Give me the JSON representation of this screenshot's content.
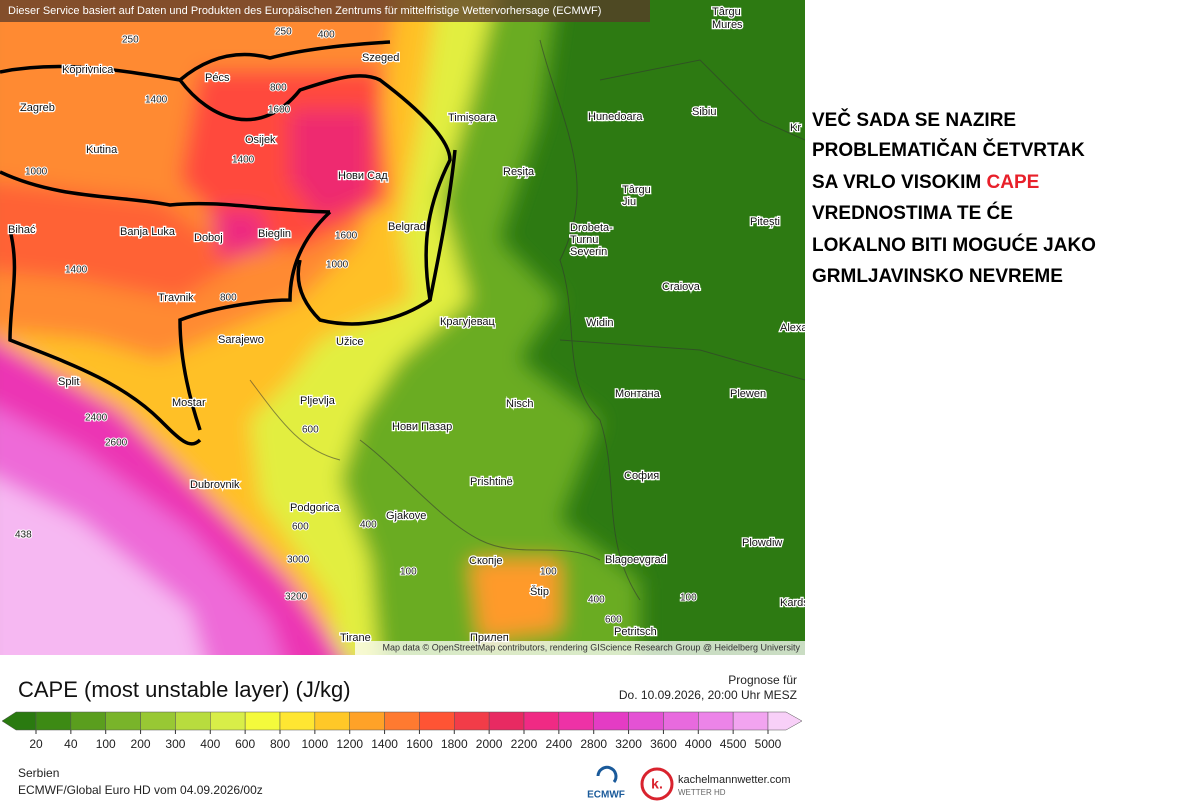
{
  "header": {
    "attribution": "Dieser Service basiert auf Daten und Produkten des Europäischen Zentrums für mittelfristige Wettervorhersage (ECMWF)"
  },
  "map": {
    "city_labels": [
      "Târgu",
      "Mures",
      "Koprivnica",
      "Pécs",
      "Szeged",
      "Zagreb",
      "Osijek",
      "Timișoara",
      "Hunedoara",
      "Sibiu",
      "Kutina",
      "Нови Сад",
      "Reșița",
      "Târgu",
      "Jiu",
      "Pitești",
      "Bihać",
      "Banja Luka",
      "Doboj",
      "Bieglin",
      "Belgrad",
      "Drobeta-",
      "Turnu",
      "Severin",
      "Craiova",
      "Travnik",
      "Крагујевац",
      "Widin",
      "Alexand",
      "Sarajewo",
      "Užice",
      "Split",
      "Mostar",
      "Pljevlja",
      "Nisch",
      "Монтана",
      "Plewen",
      "Нови Пазар",
      "Dubrovnik",
      "Prishtinë",
      "София",
      "Podgorica",
      "Gjakove",
      "Plowdiw",
      "Скопје",
      "Blagoevgrad",
      "Štip",
      "Petritsch",
      "Kardsc",
      "Tirane",
      "Прилеп",
      "Kr"
    ],
    "contour_labels": [
      "250",
      "250",
      "400",
      "800",
      "1400",
      "1600",
      "1400",
      "1000",
      "1600",
      "1000",
      "800",
      "1400",
      "2400",
      "2600",
      "600",
      "600",
      "3000",
      "3200",
      "100",
      "100",
      "400",
      "600",
      "100",
      "400",
      "438"
    ],
    "attribution": "Map data © OpenStreetMap contributors, rendering GIScience Research Group @ Heidelberg University"
  },
  "annotation": {
    "lines": [
      "VEČ SADA SE NAZIRE",
      "PROBLEMATIČAN ČETVRTAK"
    ],
    "highlight_line": {
      "text": "SA VRLO VISOKIM",
      "highlight": "CAPE",
      "highlight_color": "#e8202a"
    },
    "rest": [
      "VREDNOSTIMA TE ĆE",
      "LOKALNO BITI MOGUĆE JAKO",
      "GRMLJAVINSKO NEVREME"
    ]
  },
  "legend": {
    "title": "CAPE (most unstable layer) (J/kg)",
    "ticks": [
      "20",
      "40",
      "100",
      "200",
      "300",
      "400",
      "600",
      "800",
      "1000",
      "1200",
      "1400",
      "1600",
      "1800",
      "2000",
      "2200",
      "2400",
      "2800",
      "3200",
      "3600",
      "4000",
      "4500",
      "5000"
    ],
    "colors": [
      "#2a7a10",
      "#3d8a14",
      "#5a9e1e",
      "#79b42a",
      "#98c834",
      "#b8dc3e",
      "#d8ee48",
      "#f4fa3c",
      "#ffe632",
      "#ffc828",
      "#ffa228",
      "#ff7a30",
      "#ff5434",
      "#f23c48",
      "#e82a62",
      "#f02a84",
      "#ee32a6",
      "#e43cc4",
      "#e452d4",
      "#e86ade",
      "#ec84e8",
      "#f2a4f0",
      "#f8d0f8"
    ]
  },
  "forecast": {
    "label": "Prognose für",
    "time": "Do. 10.09.2026, 20:00 Uhr MESZ"
  },
  "footer": {
    "region": "Serbien",
    "model": "ECMWF/Global Euro HD vom  04.09.2026/00z",
    "ecmwf": "ECMWF",
    "brand": "kachelmannwetter.com",
    "brand_sub": "WETTER HD",
    "logo_letter": "k."
  }
}
